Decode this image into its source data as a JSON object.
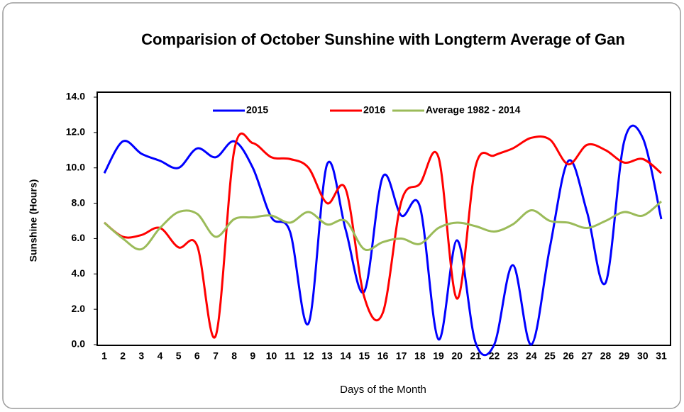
{
  "chart_data": {
    "type": "line",
    "title": "Comparision of October Sunshine with Longterm Average of Gan",
    "x_label": "Days of the Month",
    "y_label": "Sunshine (Hours)",
    "categories": [
      1,
      2,
      3,
      4,
      5,
      6,
      7,
      8,
      9,
      10,
      11,
      12,
      13,
      14,
      15,
      16,
      17,
      18,
      19,
      20,
      21,
      22,
      23,
      24,
      25,
      26,
      27,
      28,
      29,
      30,
      31
    ],
    "series": [
      {
        "name": "2015",
        "color": "#0000ff",
        "values": [
          9.7,
          11.5,
          10.8,
          10.4,
          10.0,
          11.1,
          10.6,
          11.5,
          10.0,
          7.2,
          6.4,
          1.2,
          10.2,
          6.5,
          3.0,
          9.5,
          7.3,
          7.8,
          0.3,
          5.9,
          0.1,
          0.0,
          4.5,
          0.0,
          5.5,
          10.4,
          7.5,
          3.5,
          11.5,
          11.7,
          7.1
        ]
      },
      {
        "name": "2016",
        "color": "#ff0000",
        "values": [
          6.9,
          6.1,
          6.2,
          6.6,
          5.5,
          5.6,
          0.5,
          11.0,
          11.4,
          10.6,
          10.5,
          10.0,
          8.0,
          8.8,
          2.7,
          1.8,
          8.1,
          9.1,
          10.6,
          2.6,
          10.1,
          10.7,
          11.1,
          11.7,
          11.6,
          10.2,
          11.3,
          11.0,
          10.3,
          10.5,
          9.7
        ]
      },
      {
        "name": "Average 1982 - 2014",
        "color": "#9bbb59",
        "values": [
          6.9,
          6.0,
          5.4,
          6.6,
          7.5,
          7.4,
          6.1,
          7.1,
          7.2,
          7.3,
          6.9,
          7.5,
          6.8,
          7.0,
          5.4,
          5.8,
          6.0,
          5.7,
          6.6,
          6.9,
          6.7,
          6.4,
          6.8,
          7.6,
          7.0,
          6.9,
          6.6,
          7.0,
          7.5,
          7.3,
          8.1
        ]
      }
    ],
    "ylim": [
      0,
      14
    ],
    "yticks": [
      {
        "value": 0,
        "label": "0.0"
      },
      {
        "value": 2,
        "label": "2.0"
      },
      {
        "value": 4,
        "label": "4.0"
      },
      {
        "value": 6,
        "label": "6.0"
      },
      {
        "value": 8,
        "label": "8.0"
      },
      {
        "value": 10,
        "label": "10.0"
      },
      {
        "value": 12,
        "label": "12.0"
      },
      {
        "value": 14,
        "label": "14.0"
      }
    ],
    "legend": "top"
  }
}
